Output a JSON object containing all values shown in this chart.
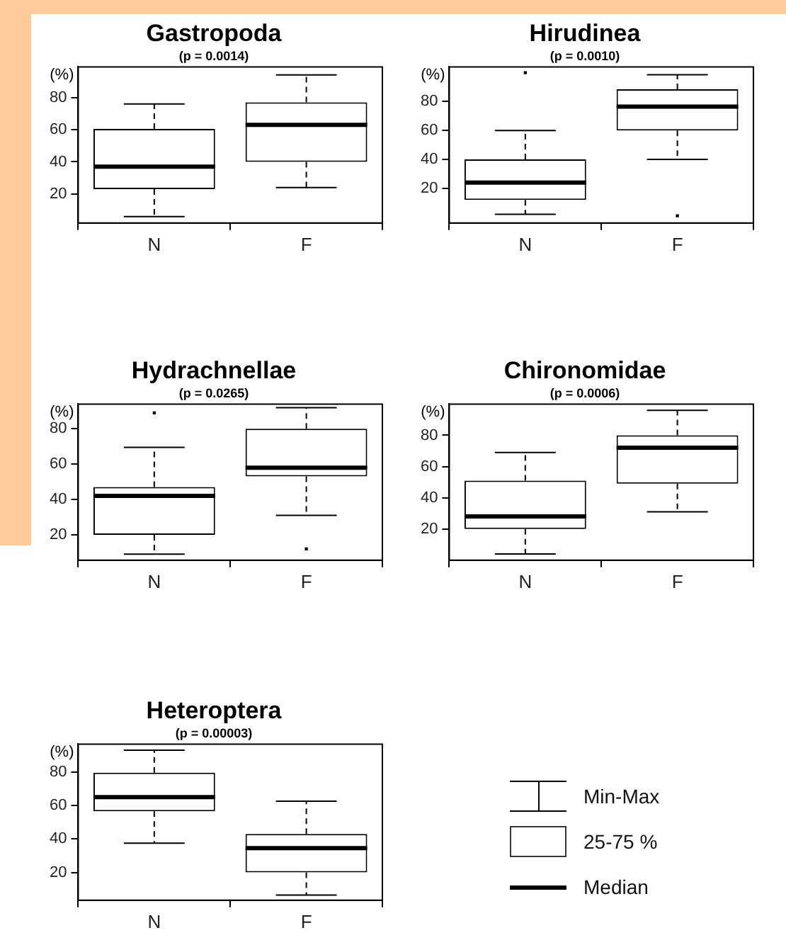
{
  "chart_data": [
    {
      "type": "box",
      "title": "Gastropoda",
      "subtitle": "(p = 0.0014)",
      "ylabel": "(%)",
      "categories": [
        "N",
        "F"
      ],
      "ylim": [
        2,
        99
      ],
      "yticks": [
        20,
        40,
        60,
        80
      ],
      "boxes": [
        {
          "low": 6,
          "q1": 23,
          "median": 37,
          "q3": 60.5,
          "high": 76
        },
        {
          "low": 24,
          "q1": 40,
          "median": 63,
          "q3": 77,
          "high": 94
        }
      ]
    },
    {
      "type": "box",
      "title": "Hirudinea",
      "subtitle": "(p = 0.0010)",
      "ylabel": "(%)",
      "categories": [
        "N",
        "F"
      ],
      "ylim": [
        -4,
        104
      ],
      "yticks": [
        20,
        40,
        60,
        80
      ],
      "boxes": [
        {
          "low": 2,
          "q1": 12,
          "median": 24,
          "q3": 40,
          "high": 60,
          "outliers": [
            100
          ]
        },
        {
          "low": 40,
          "q1": 60,
          "median": 76.5,
          "q3": 88.5,
          "high": 98.5,
          "outliers": [
            1
          ]
        }
      ]
    },
    {
      "type": "box",
      "title": "Hydrachnellae",
      "subtitle": "(p = 0.0265)",
      "ylabel": "(%)",
      "categories": [
        "N",
        "F"
      ],
      "ylim": [
        5.6,
        94
      ],
      "yticks": [
        20,
        40,
        60,
        80
      ],
      "boxes": [
        {
          "low": 9,
          "q1": 20,
          "median": 42,
          "q3": 47,
          "high": 69.5,
          "outliers": [
            89
          ]
        },
        {
          "low": 31,
          "q1": 53,
          "median": 58,
          "q3": 80,
          "high": 92,
          "outliers": [
            12
          ]
        }
      ]
    },
    {
      "type": "box",
      "title": "Chironomidae",
      "subtitle": "(p = 0.0006)",
      "ylabel": "(%)",
      "categories": [
        "N",
        "F"
      ],
      "ylim": [
        0,
        100
      ],
      "yticks": [
        20,
        40,
        60,
        80
      ],
      "boxes": [
        {
          "low": 4,
          "q1": 20,
          "median": 28,
          "q3": 51,
          "high": 69
        },
        {
          "low": 31,
          "q1": 49,
          "median": 72,
          "q3": 80,
          "high": 96
        }
      ]
    },
    {
      "type": "box",
      "title": "Heteroptera",
      "subtitle": "(p = 0.00003)",
      "ylabel": "(%)",
      "categories": [
        "N",
        "F"
      ],
      "ylim": [
        3.4,
        96.6
      ],
      "yticks": [
        20,
        40,
        60,
        80
      ],
      "boxes": [
        {
          "low": 37.5,
          "q1": 56.5,
          "median": 65,
          "q3": 79.5,
          "high": 93
        },
        {
          "low": 6.5,
          "q1": 20,
          "median": 34.5,
          "q3": 43,
          "high": 62.5
        }
      ]
    },
    {
      "type": "other",
      "annotations": [
        "Min-Max",
        "25-75 %",
        "Median"
      ]
    }
  ]
}
